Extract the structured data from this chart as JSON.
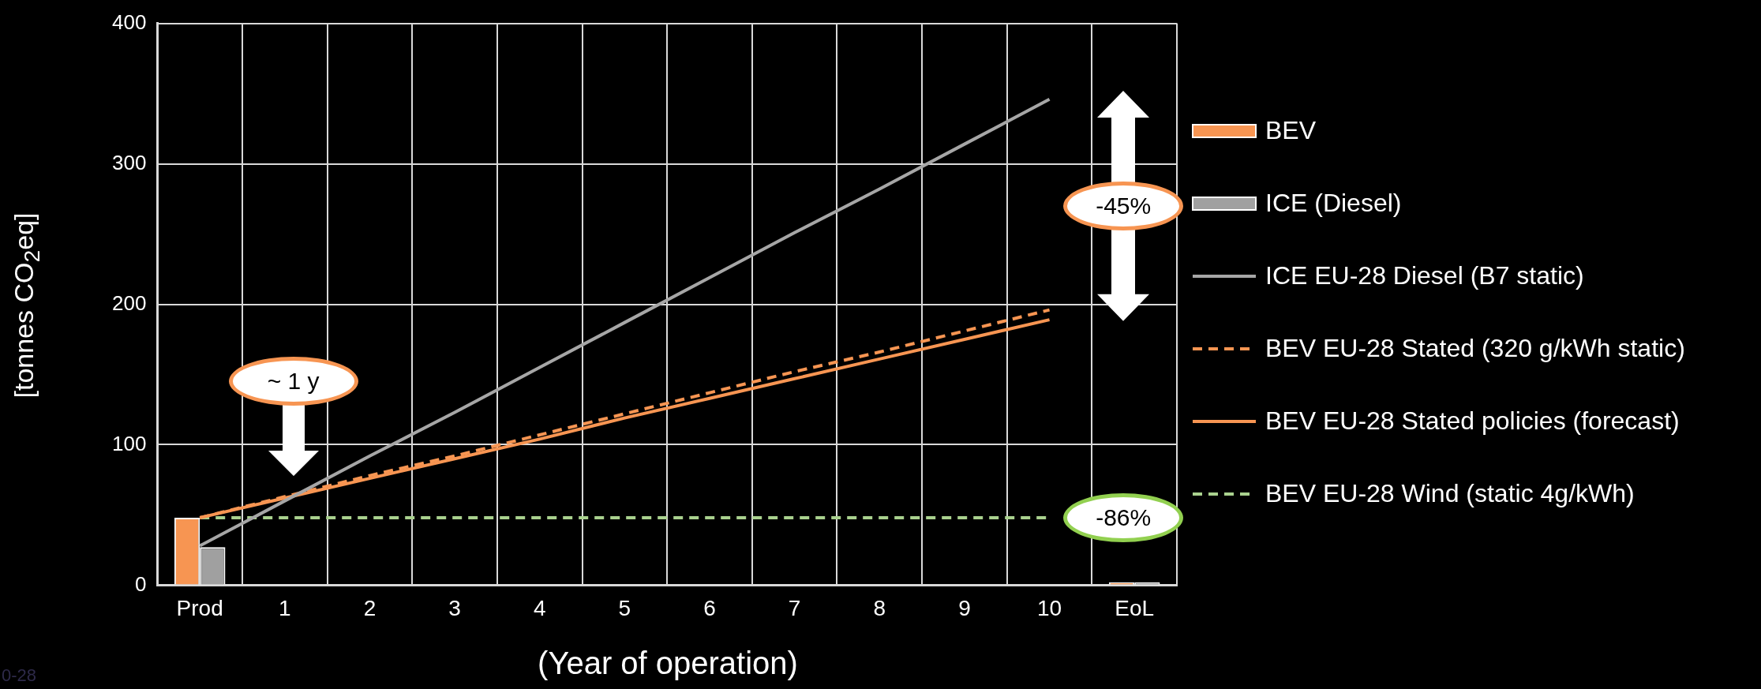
{
  "chart_data": {
    "type": "bar",
    "xlabel": "(Year of operation)",
    "ylabel": "[tonnes CO$_{2}$eq]",
    "categories": [
      "Prod",
      "1",
      "2",
      "3",
      "4",
      "5",
      "6",
      "7",
      "8",
      "9",
      "10",
      "EoL"
    ],
    "series": [
      {
        "name": "BEV",
        "color": "#f79552",
        "values": [
          48,
          null,
          null,
          null,
          null,
          null,
          null,
          null,
          null,
          null,
          null,
          2
        ]
      },
      {
        "name": "ICE (Diesel)",
        "color": "#a0a0a0",
        "values": [
          27,
          null,
          null,
          null,
          null,
          null,
          null,
          null,
          null,
          null,
          null,
          2
        ]
      },
      {
        "name": "ICE EU-28 Diesel (B7 static)",
        "type": "line",
        "line_style": "solid",
        "color": "#a6a6a6",
        "values": [
          28,
          60,
          92,
          123,
          155,
          187,
          219,
          251,
          282,
          314,
          346,
          null
        ]
      },
      {
        "name": "BEV EU-28 Stated (320 g/kWh static)",
        "type": "line",
        "line_style": "dashed",
        "color": "#f79552",
        "values": [
          48,
          63,
          78,
          92,
          107,
          122,
          137,
          152,
          166,
          181,
          196,
          null
        ]
      },
      {
        "name": "BEV EU-28 Stated policies (forecast)",
        "type": "line",
        "line_style": "solid",
        "color": "#f79552",
        "values": [
          48,
          62,
          76,
          90,
          104,
          119,
          133,
          147,
          161,
          175,
          189,
          null
        ]
      },
      {
        "name": "BEV EU-28 Wind (static 4g/kWh)",
        "type": "line",
        "line_style": "dashed",
        "color": "#a9d18e",
        "values": [
          48,
          48,
          48,
          48,
          48,
          48,
          48,
          48,
          48,
          48,
          48,
          null
        ]
      }
    ],
    "ylim": [
      0,
      400
    ],
    "yticks": [
      0,
      100,
      200,
      300,
      400
    ],
    "grid": true,
    "legend": "right",
    "marker": "none",
    "annotations": [
      "~ 1 y",
      "-45%",
      "-86%",
      "0-28"
    ]
  }
}
